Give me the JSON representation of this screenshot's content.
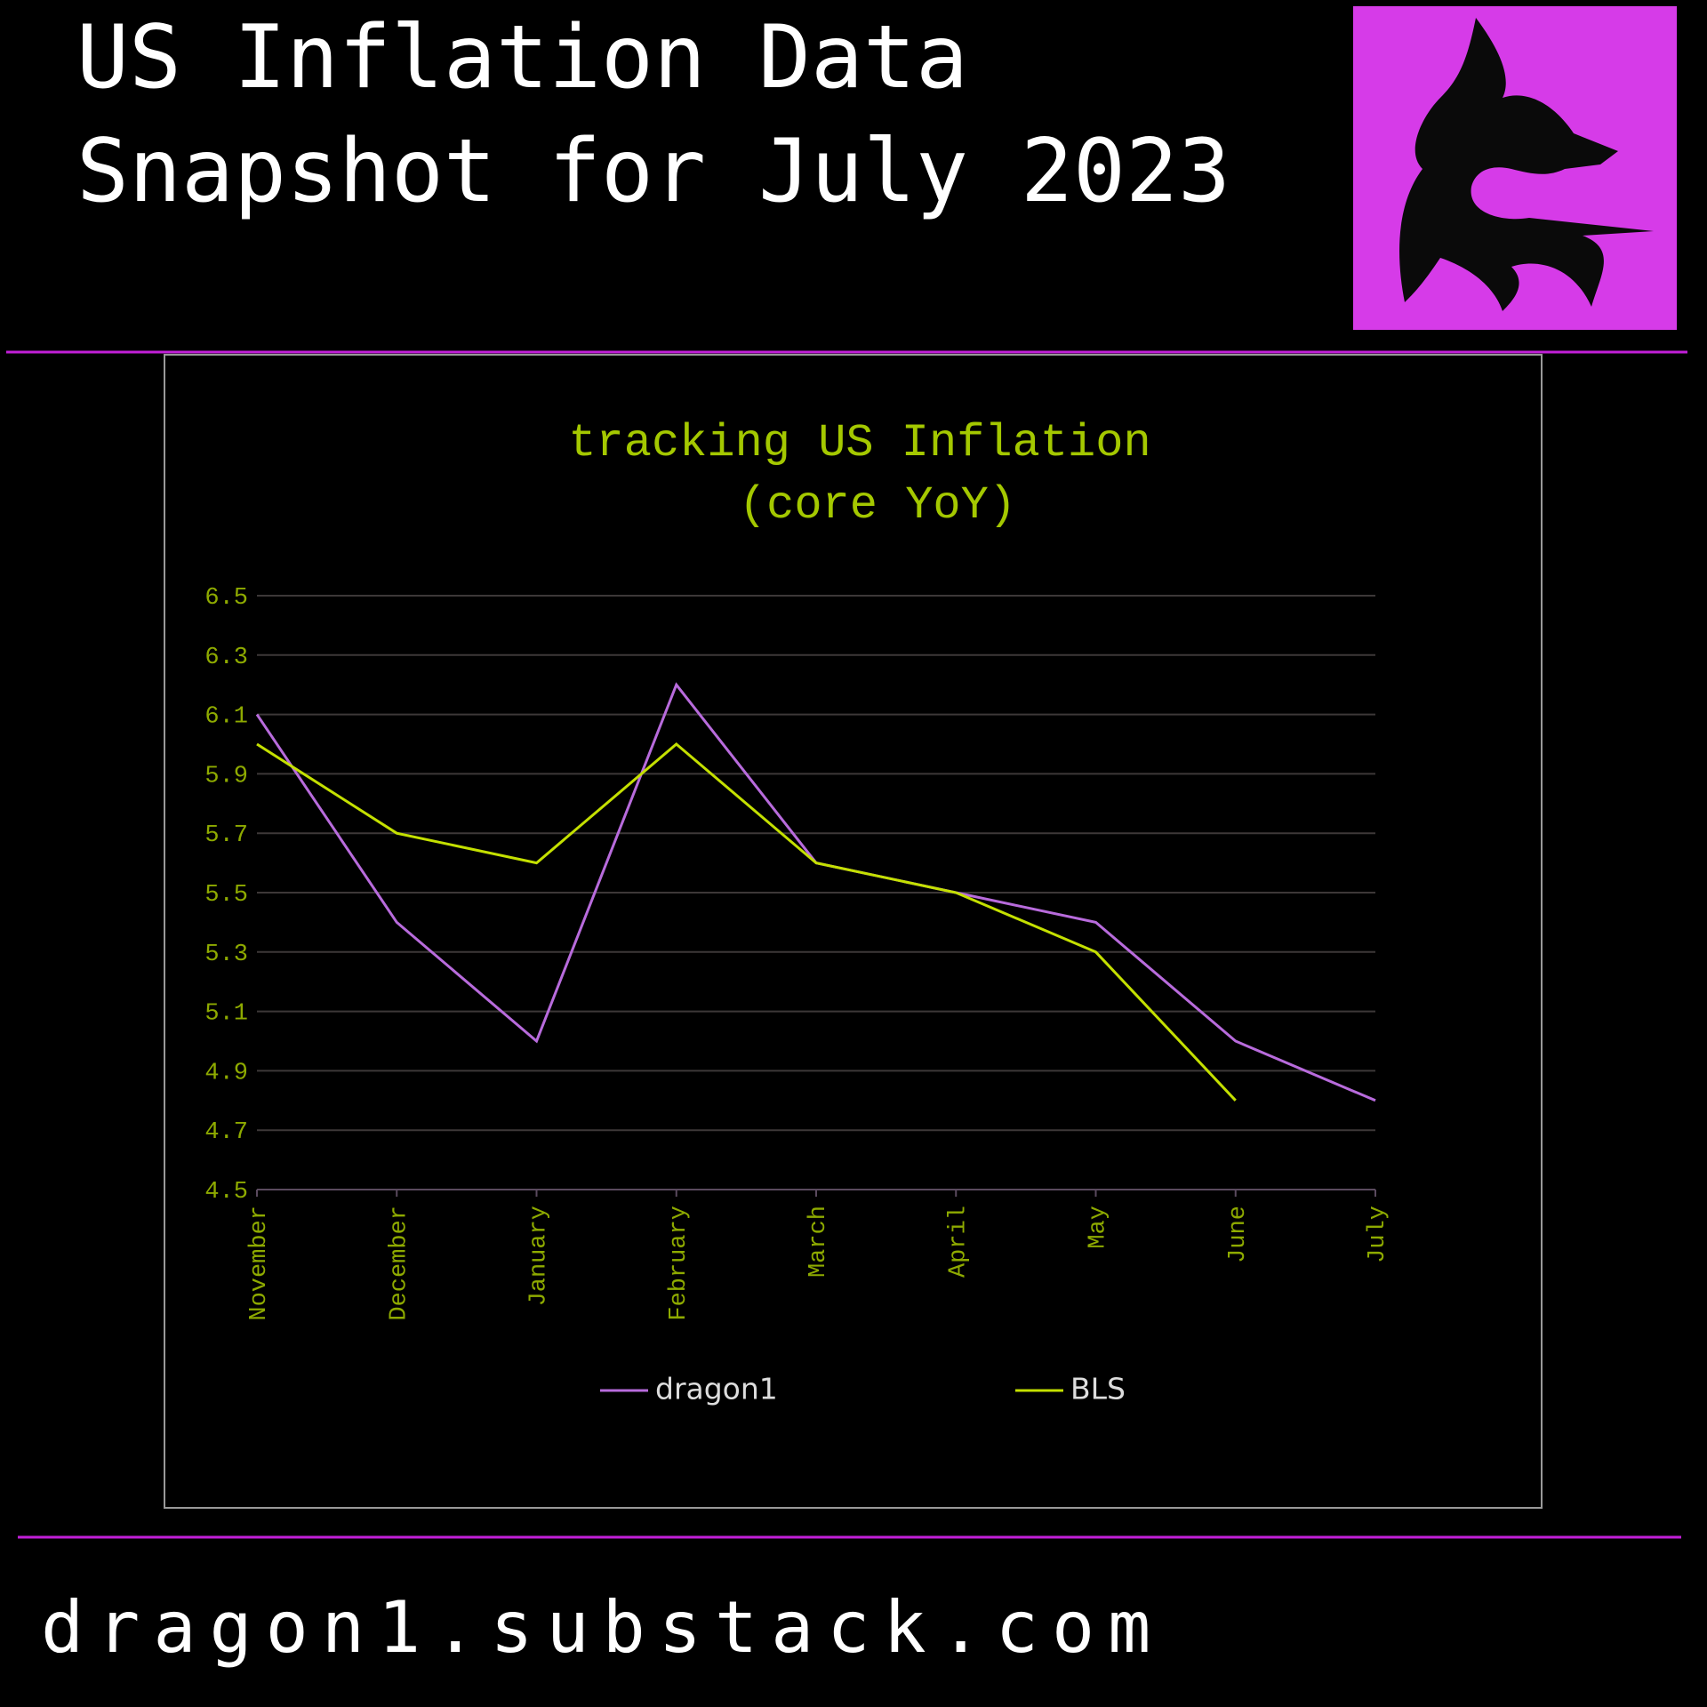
{
  "header": {
    "title_lines": [
      "US Inflation Data",
      "Snapshot for July 2023"
    ]
  },
  "chart_data": {
    "type": "line",
    "title": "tracking US Inflation",
    "subtitle": "(core YoY)",
    "categories": [
      "November",
      "December",
      "January",
      "February",
      "March",
      "April",
      "May",
      "June",
      "July"
    ],
    "series": [
      {
        "name": "dragon1",
        "color": "#b86bdc",
        "values": [
          6.1,
          5.4,
          5.0,
          6.2,
          5.6,
          5.5,
          5.4,
          5.0,
          4.8
        ]
      },
      {
        "name": "BLS",
        "color": "#c4e000",
        "values": [
          6.0,
          5.7,
          5.6,
          6.0,
          5.6,
          5.5,
          5.3,
          4.8,
          null
        ]
      }
    ],
    "ylim": [
      4.5,
      6.5
    ],
    "yticks": [
      4.5,
      4.7,
      4.9,
      5.1,
      5.3,
      5.5,
      5.7,
      5.9,
      6.1,
      6.3,
      6.5
    ],
    "grid": true,
    "legend": "bottom"
  },
  "footer": {
    "url": "dragon1.substack.com"
  }
}
